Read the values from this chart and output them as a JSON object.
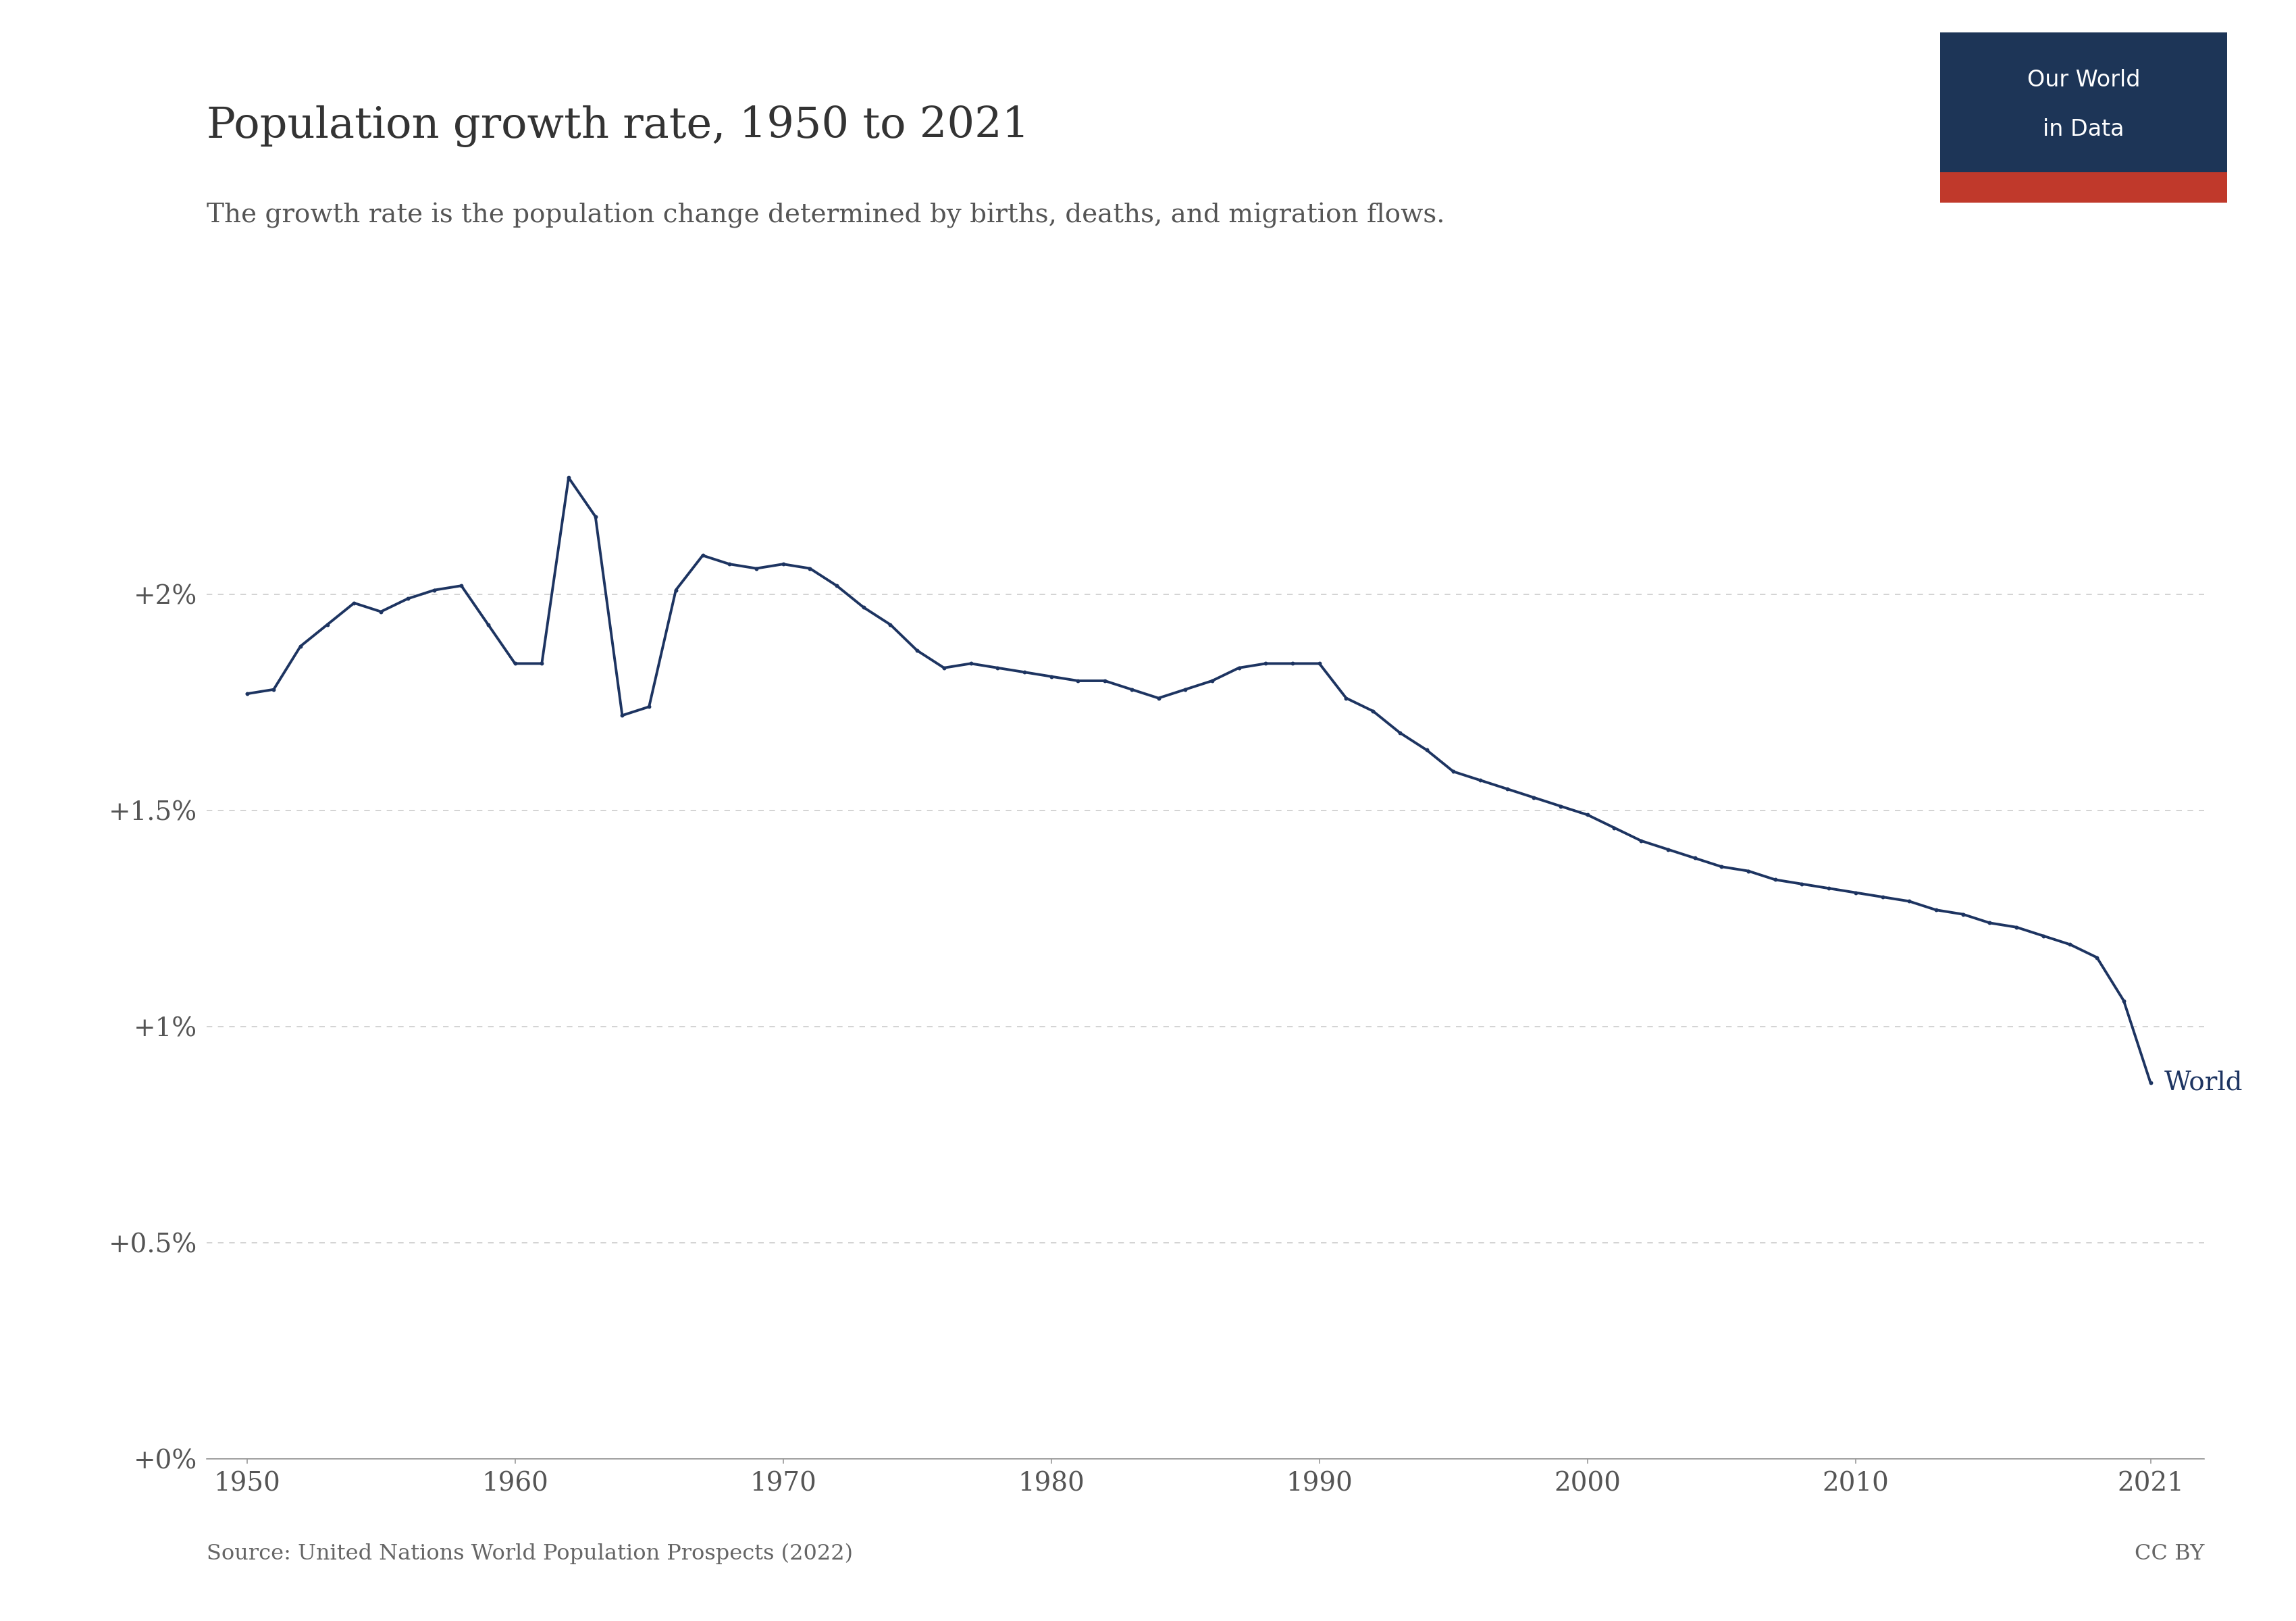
{
  "title": "Population growth rate, 1950 to 2021",
  "subtitle": "The growth rate is the population change determined by births, deaths, and migration flows.",
  "source": "Source: United Nations World Population Prospects (2022)",
  "license": "CC BY",
  "line_color": "#1d3461",
  "background_color": "#ffffff",
  "years": [
    1950,
    1951,
    1952,
    1953,
    1954,
    1955,
    1956,
    1957,
    1958,
    1959,
    1960,
    1961,
    1962,
    1963,
    1964,
    1965,
    1966,
    1967,
    1968,
    1969,
    1970,
    1971,
    1972,
    1973,
    1974,
    1975,
    1976,
    1977,
    1978,
    1979,
    1980,
    1981,
    1982,
    1983,
    1984,
    1985,
    1986,
    1987,
    1988,
    1989,
    1990,
    1991,
    1992,
    1993,
    1994,
    1995,
    1996,
    1997,
    1998,
    1999,
    2000,
    2001,
    2002,
    2003,
    2004,
    2005,
    2006,
    2007,
    2008,
    2009,
    2010,
    2011,
    2012,
    2013,
    2014,
    2015,
    2016,
    2017,
    2018,
    2019,
    2020,
    2021
  ],
  "values": [
    1.77,
    1.78,
    1.88,
    1.93,
    1.98,
    1.96,
    1.99,
    2.01,
    2.02,
    1.93,
    1.84,
    1.84,
    2.27,
    2.18,
    1.72,
    1.74,
    2.01,
    2.09,
    2.07,
    2.06,
    2.07,
    2.06,
    2.02,
    1.97,
    1.93,
    1.87,
    1.83,
    1.84,
    1.83,
    1.82,
    1.81,
    1.8,
    1.8,
    1.78,
    1.76,
    1.78,
    1.8,
    1.83,
    1.84,
    1.84,
    1.84,
    1.76,
    1.73,
    1.68,
    1.64,
    1.59,
    1.57,
    1.55,
    1.53,
    1.51,
    1.49,
    1.46,
    1.43,
    1.41,
    1.39,
    1.37,
    1.36,
    1.34,
    1.33,
    1.32,
    1.31,
    1.3,
    1.29,
    1.27,
    1.26,
    1.24,
    1.23,
    1.21,
    1.19,
    1.16,
    1.06,
    0.87
  ],
  "yticks": [
    0.0,
    0.5,
    1.0,
    1.5,
    2.0
  ],
  "ytick_labels": [
    "+0%",
    "+0.5%",
    "+1%",
    "+1.5%",
    "+2%"
  ],
  "xticks": [
    1950,
    1960,
    1970,
    1980,
    1990,
    2000,
    2010,
    2021
  ],
  "ylim": [
    0.0,
    2.55
  ],
  "xlim": [
    1948.5,
    2023
  ],
  "owid_bg_color": "#1d3557",
  "owid_bar_color": "#c0392b",
  "owid_text_color": "#ffffff",
  "grid_color": "#cccccc",
  "axis_color": "#999999"
}
